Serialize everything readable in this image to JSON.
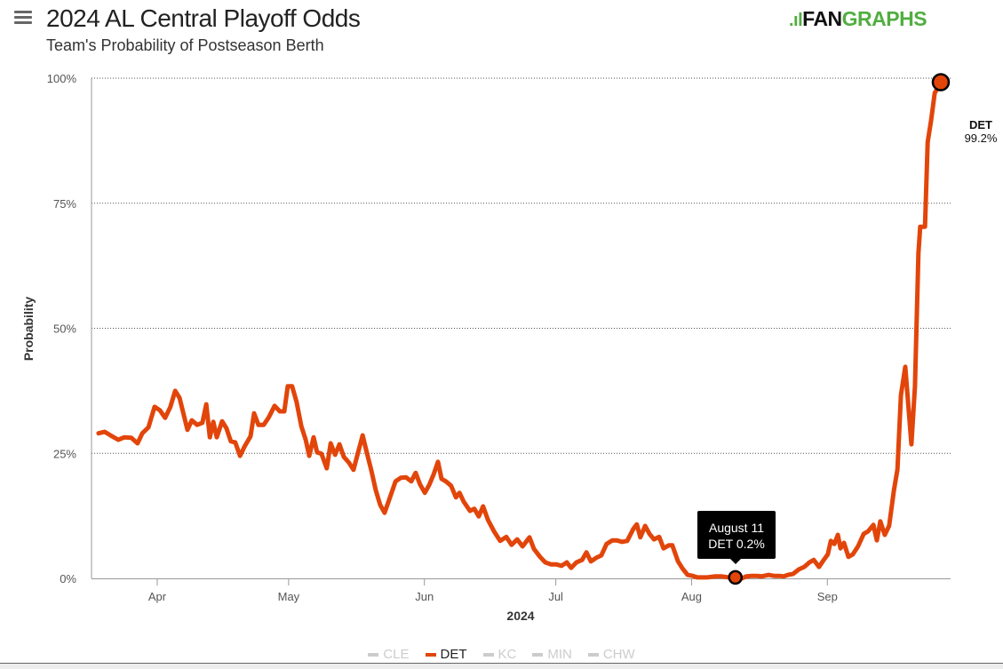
{
  "header": {
    "title": "2024 AL Central Playoff Odds",
    "subtitle": "Team's Probability of Postseason Berth",
    "logo_text_1": "FAN",
    "logo_text_2": "GRAPHS"
  },
  "tooltip": {
    "date": "August 11",
    "value": "DET 0.2%"
  },
  "end_label": {
    "team": "DET",
    "value": "99.2%"
  },
  "legend": [
    {
      "label": "CLE",
      "active": false
    },
    {
      "label": "DET",
      "active": true
    },
    {
      "label": "KC",
      "active": false
    },
    {
      "label": "MIN",
      "active": false
    },
    {
      "label": "CHW",
      "active": false
    }
  ],
  "colors": {
    "det": "#e2450a",
    "inactive": "#cccccc",
    "grid": "#555555"
  },
  "chart_data": {
    "type": "line",
    "title": "2024 AL Central Playoff Odds",
    "subtitle": "Team's Probability of Postseason Berth",
    "xlabel": "2024",
    "ylabel": "Probability",
    "x_units": "days since April 1, 2024",
    "xlim": [
      -15,
      181
    ],
    "ylim": [
      0,
      100
    ],
    "x_ticks": [
      {
        "v": 0,
        "label": "Apr"
      },
      {
        "v": 30,
        "label": "May"
      },
      {
        "v": 61,
        "label": "Jun"
      },
      {
        "v": 91,
        "label": "Jul"
      },
      {
        "v": 122,
        "label": "Aug"
      },
      {
        "v": 153,
        "label": "Sep"
      }
    ],
    "y_ticks": [
      {
        "v": 0,
        "label": "0%"
      },
      {
        "v": 25,
        "label": "25%"
      },
      {
        "v": 50,
        "label": "50%"
      },
      {
        "v": 75,
        "label": "75%"
      },
      {
        "v": 100,
        "label": "100%"
      }
    ],
    "grid": true,
    "legend_position": "bottom",
    "series": [
      {
        "name": "DET",
        "x": [
          -13.4,
          -12.0,
          -10.3,
          -8.9,
          -7.5,
          -5.9,
          -4.5,
          -3.4,
          -2.0,
          -0.6,
          0.6,
          1.8,
          3.0,
          4.1,
          5.1,
          6.1,
          6.9,
          7.9,
          9.1,
          10.3,
          11.2,
          12.0,
          12.8,
          13.6,
          14.8,
          15.8,
          16.8,
          17.8,
          18.9,
          19.9,
          21.3,
          22.1,
          23.1,
          24.3,
          25.4,
          26.8,
          28.0,
          29.0,
          29.8,
          30.8,
          31.8,
          32.9,
          33.9,
          34.7,
          35.7,
          36.5,
          37.5,
          38.7,
          39.6,
          40.6,
          41.6,
          42.6,
          43.8,
          44.8,
          45.8,
          46.9,
          47.9,
          48.9,
          49.9,
          50.9,
          51.9,
          52.9,
          54.4,
          55.6,
          56.8,
          58.0,
          59.0,
          60.0,
          61.1,
          62.1,
          63.1,
          64.1,
          64.9,
          65.9,
          67.1,
          68.2,
          69.0,
          70.0,
          71.4,
          72.4,
          73.4,
          74.4,
          75.5,
          76.9,
          78.3,
          79.7,
          80.9,
          82.2,
          83.4,
          85.0,
          86.0,
          87.4,
          88.6,
          89.9,
          91.1,
          92.3,
          93.5,
          94.5,
          95.7,
          97.0,
          98.0,
          99.0,
          100.2,
          101.4,
          102.6,
          103.9,
          104.9,
          106.1,
          107.3,
          108.7,
          109.5,
          110.3,
          111.4,
          112.4,
          113.4,
          114.6,
          115.6,
          116.8,
          117.6,
          118.9,
          119.9,
          121.1,
          122.3,
          123.3,
          124.3,
          125.6,
          127.4,
          128.8,
          130.4,
          132.0,
          133.5,
          134.5,
          135.7,
          136.9,
          138.1,
          139.6,
          140.8,
          142.0,
          143.0,
          144.0,
          145.2,
          146.5,
          147.7,
          148.9,
          149.9,
          151.1,
          152.1,
          153.1,
          153.8,
          154.6,
          155.4,
          156.0,
          156.8,
          157.8,
          158.8,
          160.0,
          161.3,
          162.3,
          163.5,
          164.3,
          165.1,
          166.1,
          167.1,
          168.2,
          169.0,
          169.8,
          170.8,
          172.2,
          173.0,
          173.8,
          174.2,
          175.3,
          175.9,
          176.7,
          177.5,
          178.9
        ],
        "y": [
          29.0,
          29.3,
          28.4,
          27.7,
          28.2,
          28.1,
          27.0,
          29.0,
          30.2,
          34.3,
          33.6,
          32.1,
          34.3,
          37.5,
          36.1,
          32.5,
          29.7,
          31.6,
          30.7,
          31.1,
          34.8,
          28.2,
          31.3,
          28.2,
          31.4,
          30.0,
          27.4,
          27.2,
          24.5,
          26.3,
          28.4,
          33.0,
          30.7,
          30.7,
          32.1,
          34.5,
          33.4,
          33.4,
          38.4,
          38.4,
          35.3,
          30.4,
          27.7,
          24.5,
          28.2,
          25.2,
          24.9,
          22.0,
          27.0,
          24.7,
          26.8,
          24.3,
          23.1,
          21.7,
          25.0,
          28.6,
          25.0,
          21.5,
          17.6,
          14.7,
          13.1,
          15.6,
          19.4,
          20.1,
          20.2,
          19.4,
          21.1,
          18.8,
          17.1,
          18.7,
          20.8,
          23.3,
          19.9,
          19.4,
          18.5,
          16.2,
          17.1,
          15.3,
          13.5,
          13.9,
          12.4,
          14.4,
          11.7,
          9.4,
          7.5,
          8.3,
          6.7,
          7.8,
          6.4,
          8.2,
          5.9,
          4.3,
          3.2,
          2.8,
          2.8,
          2.5,
          3.2,
          2.1,
          3.2,
          3.7,
          5.2,
          3.4,
          4.1,
          4.6,
          6.9,
          7.6,
          7.6,
          7.3,
          7.5,
          9.9,
          10.8,
          8.2,
          10.5,
          8.9,
          7.8,
          8.3,
          6.0,
          6.6,
          6.6,
          3.4,
          2.0,
          0.7,
          0.5,
          0.2,
          0.2,
          0.2,
          0.4,
          0.4,
          0.2,
          0.2,
          0.0,
          0.4,
          0.5,
          0.5,
          0.4,
          0.7,
          0.5,
          0.5,
          0.4,
          0.7,
          0.9,
          1.8,
          2.3,
          3.2,
          3.7,
          2.3,
          3.6,
          4.8,
          7.5,
          6.9,
          8.7,
          6.0,
          7.1,
          4.3,
          4.8,
          6.4,
          8.9,
          9.4,
          10.7,
          7.6,
          11.4,
          8.7,
          10.5,
          17.6,
          21.8,
          36.6,
          42.3,
          26.8,
          38.4,
          65.0,
          70.3,
          70.3,
          87.2,
          91.6,
          97.0,
          99.2
        ]
      }
    ],
    "highlight_points": [
      {
        "series": "DET",
        "x": 132.0,
        "y": 0.2,
        "label": "August 11"
      },
      {
        "series": "DET",
        "x": 178.9,
        "y": 99.2,
        "label": "DET 99.2%"
      }
    ]
  }
}
